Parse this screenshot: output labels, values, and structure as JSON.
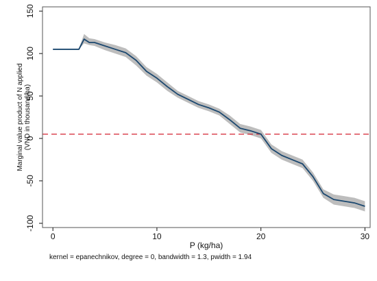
{
  "chart_data": {
    "type": "line",
    "title": "",
    "xlabel": "P (kg/ha)",
    "ylabel_lines": [
      "Marginal value product of N applied",
      "(VND in thousand/ha)"
    ],
    "note": "kernel = epanechnikov, degree = 0, bandwidth = 1.3, pwidth = 1.94",
    "xlim": [
      -1,
      30.5
    ],
    "ylim": [
      -105,
      155
    ],
    "x_ticks": [
      0,
      10,
      20,
      30
    ],
    "x_tick_labels": [
      "0",
      "10",
      "20",
      "30"
    ],
    "y_ticks": [
      -100,
      -50,
      0,
      50,
      100,
      150
    ],
    "y_tick_labels": [
      "-100",
      "-50",
      "0",
      "50",
      "100",
      "150"
    ],
    "grid": false,
    "reference_line": {
      "y": 5,
      "style": "dashed",
      "color": "#d2202e"
    },
    "series": [
      {
        "color": "#1a476f",
        "band_color": "#bdbdbd",
        "x": [
          0,
          1,
          2,
          2.5,
          3,
          3.5,
          4,
          5,
          6,
          7,
          8,
          9,
          10,
          11,
          12,
          13,
          14,
          15,
          16,
          17,
          18,
          19,
          20,
          21,
          22,
          23,
          24,
          25,
          26,
          27,
          28,
          29,
          30
        ],
        "y": [
          105,
          105,
          105,
          105,
          117,
          113,
          113,
          109,
          105,
          101,
          92,
          79,
          71,
          61,
          52,
          46,
          40,
          36,
          31,
          22,
          12,
          9,
          5,
          -12,
          -20,
          -25,
          -30,
          -45,
          -65,
          -72,
          -74,
          -76,
          -80
        ],
        "lower": [
          105,
          105,
          105,
          105,
          112,
          110,
          109,
          104,
          100,
          96,
          86,
          74,
          66,
          56,
          48,
          42,
          36,
          32,
          27,
          17,
          7,
          4,
          0,
          -17,
          -25,
          -30,
          -35,
          -50,
          -70,
          -78,
          -80,
          -82,
          -86
        ],
        "upper": [
          105,
          105,
          105,
          106,
          123,
          118,
          117,
          113,
          110,
          106,
          97,
          84,
          76,
          66,
          56,
          50,
          44,
          40,
          35,
          27,
          17,
          14,
          10,
          -7,
          -15,
          -20,
          -25,
          -40,
          -60,
          -66,
          -68,
          -70,
          -74
        ]
      }
    ]
  }
}
